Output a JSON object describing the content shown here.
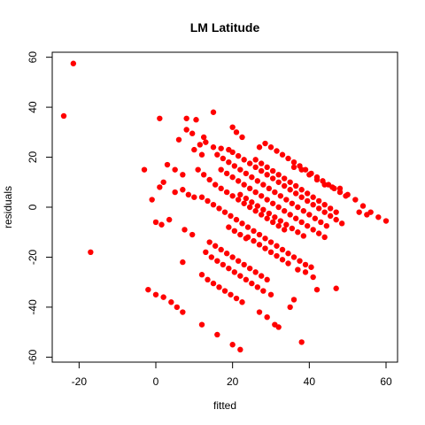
{
  "chart_data": {
    "type": "scatter",
    "title": "LM Latitude",
    "xlabel": "fitted",
    "ylabel": "residuals",
    "xlim": [
      -27,
      63
    ],
    "ylim": [
      -62,
      62
    ],
    "xticks": [
      -20,
      0,
      20,
      40,
      60
    ],
    "yticks": [
      -60,
      -40,
      -20,
      0,
      20,
      40,
      60
    ],
    "xtick_labels": [
      "-20",
      "0",
      "20",
      "40",
      "60"
    ],
    "ytick_labels": [
      "-60",
      "-40",
      "-20",
      "0",
      "20",
      "40",
      "60"
    ],
    "grid": false,
    "legend": "none",
    "point_color": "#ff0000",
    "points": [
      {
        "x": -21.5,
        "y": 57.5
      },
      {
        "x": -24,
        "y": 36.5
      },
      {
        "x": -17,
        "y": -18
      },
      {
        "x": 1,
        "y": 35.5
      },
      {
        "x": 8,
        "y": 35.5
      },
      {
        "x": 10.5,
        "y": 35
      },
      {
        "x": 15,
        "y": 38
      },
      {
        "x": 8,
        "y": 31
      },
      {
        "x": 6,
        "y": 27
      },
      {
        "x": 9.5,
        "y": 29.5
      },
      {
        "x": 12.5,
        "y": 28
      },
      {
        "x": 13,
        "y": 26
      },
      {
        "x": 15,
        "y": 24
      },
      {
        "x": 17,
        "y": 23.5
      },
      {
        "x": 19,
        "y": 23
      },
      {
        "x": 20,
        "y": 32
      },
      {
        "x": 21,
        "y": 30
      },
      {
        "x": 22.5,
        "y": 28
      },
      {
        "x": 11.5,
        "y": 25
      },
      {
        "x": 10,
        "y": 23
      },
      {
        "x": 12,
        "y": 21
      },
      {
        "x": 3,
        "y": 17
      },
      {
        "x": 5,
        "y": 15
      },
      {
        "x": 7,
        "y": 13
      },
      {
        "x": -3,
        "y": 15
      },
      {
        "x": 1,
        "y": 8
      },
      {
        "x": 2,
        "y": 10
      },
      {
        "x": -1,
        "y": 3
      },
      {
        "x": 0,
        "y": -6
      },
      {
        "x": 1.5,
        "y": -7
      },
      {
        "x": 3.5,
        "y": -5
      },
      {
        "x": 5,
        "y": 6
      },
      {
        "x": 7,
        "y": 7
      },
      {
        "x": 8.5,
        "y": 5
      },
      {
        "x": 10,
        "y": 4
      },
      {
        "x": 7.5,
        "y": -9
      },
      {
        "x": 9.5,
        "y": -11
      },
      {
        "x": 7,
        "y": -22
      },
      {
        "x": -2,
        "y": -33
      },
      {
        "x": 0,
        "y": -35
      },
      {
        "x": 2,
        "y": -36
      },
      {
        "x": 4,
        "y": -38
      },
      {
        "x": 5.5,
        "y": -40
      },
      {
        "x": 7,
        "y": -42
      },
      {
        "x": 12,
        "y": -47
      },
      {
        "x": 16,
        "y": -51
      },
      {
        "x": 20,
        "y": -55
      },
      {
        "x": 22,
        "y": -57
      },
      {
        "x": 12,
        "y": -27
      },
      {
        "x": 13.5,
        "y": -29
      },
      {
        "x": 15,
        "y": -30.5
      },
      {
        "x": 16.5,
        "y": -32
      },
      {
        "x": 18,
        "y": -33.5
      },
      {
        "x": 19.5,
        "y": -35
      },
      {
        "x": 21,
        "y": -36.5
      },
      {
        "x": 22.5,
        "y": -38
      },
      {
        "x": 13,
        "y": -18
      },
      {
        "x": 14.5,
        "y": -20
      },
      {
        "x": 16,
        "y": -21.5
      },
      {
        "x": 17.5,
        "y": -23
      },
      {
        "x": 19,
        "y": -24.5
      },
      {
        "x": 20.5,
        "y": -26
      },
      {
        "x": 22,
        "y": -27.5
      },
      {
        "x": 23.5,
        "y": -29
      },
      {
        "x": 25,
        "y": -30.5
      },
      {
        "x": 26.5,
        "y": -32
      },
      {
        "x": 28,
        "y": -33.5
      },
      {
        "x": 30,
        "y": -35
      },
      {
        "x": 14,
        "y": -14
      },
      {
        "x": 15.5,
        "y": -15.5
      },
      {
        "x": 17,
        "y": -17
      },
      {
        "x": 18.5,
        "y": -18.5
      },
      {
        "x": 20,
        "y": -20
      },
      {
        "x": 21.5,
        "y": -21.5
      },
      {
        "x": 23,
        "y": -23
      },
      {
        "x": 24.5,
        "y": -24.5
      },
      {
        "x": 26,
        "y": -26
      },
      {
        "x": 27.5,
        "y": -27.5
      },
      {
        "x": 29,
        "y": -29
      },
      {
        "x": 27,
        "y": -42
      },
      {
        "x": 29,
        "y": -44
      },
      {
        "x": 31,
        "y": -47
      },
      {
        "x": 32,
        "y": -48
      },
      {
        "x": 35,
        "y": -40
      },
      {
        "x": 38,
        "y": -54
      },
      {
        "x": 11,
        "y": 15
      },
      {
        "x": 12.5,
        "y": 13
      },
      {
        "x": 14,
        "y": 11
      },
      {
        "x": 15.5,
        "y": 9
      },
      {
        "x": 17,
        "y": 7.5
      },
      {
        "x": 18.5,
        "y": 6
      },
      {
        "x": 20,
        "y": 4.5
      },
      {
        "x": 21.5,
        "y": 3
      },
      {
        "x": 23,
        "y": 1.5
      },
      {
        "x": 24.5,
        "y": 0
      },
      {
        "x": 26,
        "y": -1.5
      },
      {
        "x": 27.5,
        "y": -3
      },
      {
        "x": 29,
        "y": -4.5
      },
      {
        "x": 30.5,
        "y": -6
      },
      {
        "x": 32,
        "y": -7.5
      },
      {
        "x": 33.5,
        "y": -9
      },
      {
        "x": 12,
        "y": 4
      },
      {
        "x": 13.5,
        "y": 2.5
      },
      {
        "x": 15,
        "y": 1
      },
      {
        "x": 16.5,
        "y": -0.5
      },
      {
        "x": 18,
        "y": -2
      },
      {
        "x": 19.5,
        "y": -3.5
      },
      {
        "x": 21,
        "y": -5
      },
      {
        "x": 22.5,
        "y": -6.5
      },
      {
        "x": 24,
        "y": -8
      },
      {
        "x": 25.5,
        "y": -9.5
      },
      {
        "x": 27,
        "y": -11
      },
      {
        "x": 28.5,
        "y": -12.5
      },
      {
        "x": 30,
        "y": -14
      },
      {
        "x": 31.5,
        "y": -15.5
      },
      {
        "x": 33,
        "y": -17
      },
      {
        "x": 34.5,
        "y": -18.5
      },
      {
        "x": 36,
        "y": -20
      },
      {
        "x": 37.5,
        "y": -21.5
      },
      {
        "x": 39,
        "y": -23
      },
      {
        "x": 40.5,
        "y": -24
      },
      {
        "x": 37,
        "y": -25
      },
      {
        "x": 39,
        "y": -26
      },
      {
        "x": 41,
        "y": -28
      },
      {
        "x": 42,
        "y": -33
      },
      {
        "x": 36,
        "y": -37
      },
      {
        "x": 47,
        "y": -32.5
      },
      {
        "x": 16,
        "y": 21
      },
      {
        "x": 17.5,
        "y": 19.5
      },
      {
        "x": 19,
        "y": 18
      },
      {
        "x": 20.5,
        "y": 16.5
      },
      {
        "x": 22,
        "y": 15
      },
      {
        "x": 23.5,
        "y": 13.5
      },
      {
        "x": 25,
        "y": 12
      },
      {
        "x": 26.5,
        "y": 10.5
      },
      {
        "x": 28,
        "y": 9
      },
      {
        "x": 29.5,
        "y": 7.5
      },
      {
        "x": 31,
        "y": 6
      },
      {
        "x": 32.5,
        "y": 4.5
      },
      {
        "x": 34,
        "y": 3
      },
      {
        "x": 35.5,
        "y": 1.5
      },
      {
        "x": 37,
        "y": 0
      },
      {
        "x": 38.5,
        "y": -1.5
      },
      {
        "x": 40,
        "y": -3
      },
      {
        "x": 41.5,
        "y": -4.5
      },
      {
        "x": 43,
        "y": -6
      },
      {
        "x": 44.5,
        "y": -7.5
      },
      {
        "x": 17,
        "y": 15
      },
      {
        "x": 18.5,
        "y": 13.5
      },
      {
        "x": 20,
        "y": 12
      },
      {
        "x": 21.5,
        "y": 10.5
      },
      {
        "x": 23,
        "y": 9
      },
      {
        "x": 24.5,
        "y": 7.5
      },
      {
        "x": 26,
        "y": 6
      },
      {
        "x": 27.5,
        "y": 4.5
      },
      {
        "x": 29,
        "y": 3
      },
      {
        "x": 30.5,
        "y": 1.5
      },
      {
        "x": 32,
        "y": 0
      },
      {
        "x": 33.5,
        "y": -1.5
      },
      {
        "x": 35,
        "y": -3
      },
      {
        "x": 36.5,
        "y": -4.5
      },
      {
        "x": 38,
        "y": -6
      },
      {
        "x": 39.5,
        "y": -7.5
      },
      {
        "x": 41,
        "y": -9
      },
      {
        "x": 42.5,
        "y": -10.5
      },
      {
        "x": 44,
        "y": -12
      },
      {
        "x": 20,
        "y": 22
      },
      {
        "x": 21.5,
        "y": 20.5
      },
      {
        "x": 23,
        "y": 19
      },
      {
        "x": 24.5,
        "y": 17.5
      },
      {
        "x": 26,
        "y": 16
      },
      {
        "x": 27.5,
        "y": 14.5
      },
      {
        "x": 29,
        "y": 13
      },
      {
        "x": 30.5,
        "y": 11.5
      },
      {
        "x": 32,
        "y": 10
      },
      {
        "x": 33.5,
        "y": 8.5
      },
      {
        "x": 35,
        "y": 7
      },
      {
        "x": 36.5,
        "y": 5.5
      },
      {
        "x": 38,
        "y": 4
      },
      {
        "x": 39.5,
        "y": 2.5
      },
      {
        "x": 41,
        "y": 1
      },
      {
        "x": 42.5,
        "y": -0.5
      },
      {
        "x": 44,
        "y": -2
      },
      {
        "x": 45.5,
        "y": -3.5
      },
      {
        "x": 47,
        "y": -5
      },
      {
        "x": 48.5,
        "y": -6.5
      },
      {
        "x": 27,
        "y": 24
      },
      {
        "x": 28.5,
        "y": 25.5
      },
      {
        "x": 30,
        "y": 24
      },
      {
        "x": 31.5,
        "y": 22.5
      },
      {
        "x": 33,
        "y": 21
      },
      {
        "x": 34.5,
        "y": 19.5
      },
      {
        "x": 36,
        "y": 18
      },
      {
        "x": 37.5,
        "y": 16.5
      },
      {
        "x": 39,
        "y": 15
      },
      {
        "x": 40.5,
        "y": 13.5
      },
      {
        "x": 42,
        "y": 12
      },
      {
        "x": 43.5,
        "y": 10.5
      },
      {
        "x": 45,
        "y": 9
      },
      {
        "x": 46.5,
        "y": 7.5
      },
      {
        "x": 48,
        "y": 6
      },
      {
        "x": 49.5,
        "y": 4.5
      },
      {
        "x": 26,
        "y": 19
      },
      {
        "x": 27.5,
        "y": 17.5
      },
      {
        "x": 29,
        "y": 16
      },
      {
        "x": 30.5,
        "y": 14.5
      },
      {
        "x": 32,
        "y": 13
      },
      {
        "x": 33.5,
        "y": 11.5
      },
      {
        "x": 35,
        "y": 10
      },
      {
        "x": 36.5,
        "y": 8.5
      },
      {
        "x": 38,
        "y": 7
      },
      {
        "x": 39.5,
        "y": 5.5
      },
      {
        "x": 41,
        "y": 4
      },
      {
        "x": 42.5,
        "y": 2.5
      },
      {
        "x": 44,
        "y": 1
      },
      {
        "x": 45.5,
        "y": -0.5
      },
      {
        "x": 47,
        "y": -2
      },
      {
        "x": 36,
        "y": 16
      },
      {
        "x": 38,
        "y": 15
      },
      {
        "x": 40,
        "y": 13
      },
      {
        "x": 42,
        "y": 11
      },
      {
        "x": 44,
        "y": 9
      },
      {
        "x": 46,
        "y": 8
      },
      {
        "x": 48,
        "y": 7.5
      },
      {
        "x": 50,
        "y": 5
      },
      {
        "x": 52,
        "y": 3
      },
      {
        "x": 54,
        "y": 0.5
      },
      {
        "x": 56,
        "y": -2
      },
      {
        "x": 58,
        "y": -4
      },
      {
        "x": 60,
        "y": -5.5
      },
      {
        "x": 53,
        "y": -2
      },
      {
        "x": 55,
        "y": -3
      },
      {
        "x": 22,
        "y": 5
      },
      {
        "x": 23.5,
        "y": 3.5
      },
      {
        "x": 25,
        "y": 2
      },
      {
        "x": 26.5,
        "y": 0.5
      },
      {
        "x": 28,
        "y": -1
      },
      {
        "x": 29.5,
        "y": -2.5
      },
      {
        "x": 31,
        "y": -4
      },
      {
        "x": 32.5,
        "y": -5.5
      },
      {
        "x": 34,
        "y": -7
      },
      {
        "x": 35.5,
        "y": -8.5
      },
      {
        "x": 37,
        "y": -10
      },
      {
        "x": 38.5,
        "y": -11.5
      },
      {
        "x": 24,
        "y": -12
      },
      {
        "x": 25.5,
        "y": -13.5
      },
      {
        "x": 27,
        "y": -15
      },
      {
        "x": 28.5,
        "y": -16.5
      },
      {
        "x": 30,
        "y": -18
      },
      {
        "x": 31.5,
        "y": -19.5
      },
      {
        "x": 33,
        "y": -21
      },
      {
        "x": 34.5,
        "y": -22.5
      },
      {
        "x": 19,
        "y": -8
      },
      {
        "x": 20.5,
        "y": -9.5
      },
      {
        "x": 22,
        "y": -11
      },
      {
        "x": 23.5,
        "y": -12.5
      }
    ]
  }
}
